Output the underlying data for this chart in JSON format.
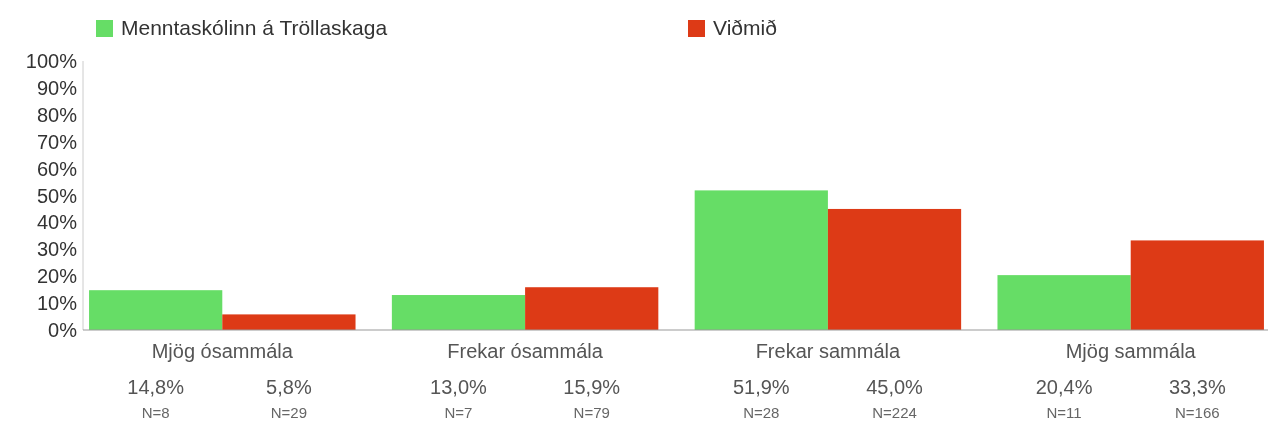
{
  "chart_data": {
    "type": "bar",
    "categories": [
      "Mjög ósammála",
      "Frekar ósammála",
      "Frekar sammála",
      "Mjög sammála"
    ],
    "series": [
      {
        "name": "Menntaskólinn á Tröllaskaga",
        "color": "#66dd66",
        "values": [
          14.8,
          13.0,
          51.9,
          20.4
        ],
        "value_labels": [
          "14,8%",
          "13,0%",
          "51,9%",
          "20,4%"
        ]
      },
      {
        "name": "Viðmið",
        "color": "#dd3a16",
        "values": [
          5.8,
          15.9,
          45.0,
          33.3
        ],
        "value_labels": [
          "5,8%",
          "15,9%",
          "45,0%",
          "33,3%"
        ]
      }
    ],
    "ylim": [
      0,
      100
    ],
    "yticks": [
      {
        "value": 0,
        "label": "0%"
      },
      {
        "value": 10,
        "label": "10%"
      },
      {
        "value": 20,
        "label": "20%"
      },
      {
        "value": 30,
        "label": "30%"
      },
      {
        "value": 40,
        "label": "40%"
      },
      {
        "value": 50,
        "label": "50%"
      },
      {
        "value": 60,
        "label": "60%"
      },
      {
        "value": 70,
        "label": "70%"
      },
      {
        "value": 80,
        "label": "80%"
      },
      {
        "value": 90,
        "label": "90%"
      },
      {
        "value": 100,
        "label": "100%"
      }
    ],
    "annotations": [
      "N=8",
      "N=29",
      "N=7",
      "N=79",
      "N=28",
      "N=224",
      "N=11",
      "N=166"
    ],
    "legend": "top",
    "grid": false
  }
}
